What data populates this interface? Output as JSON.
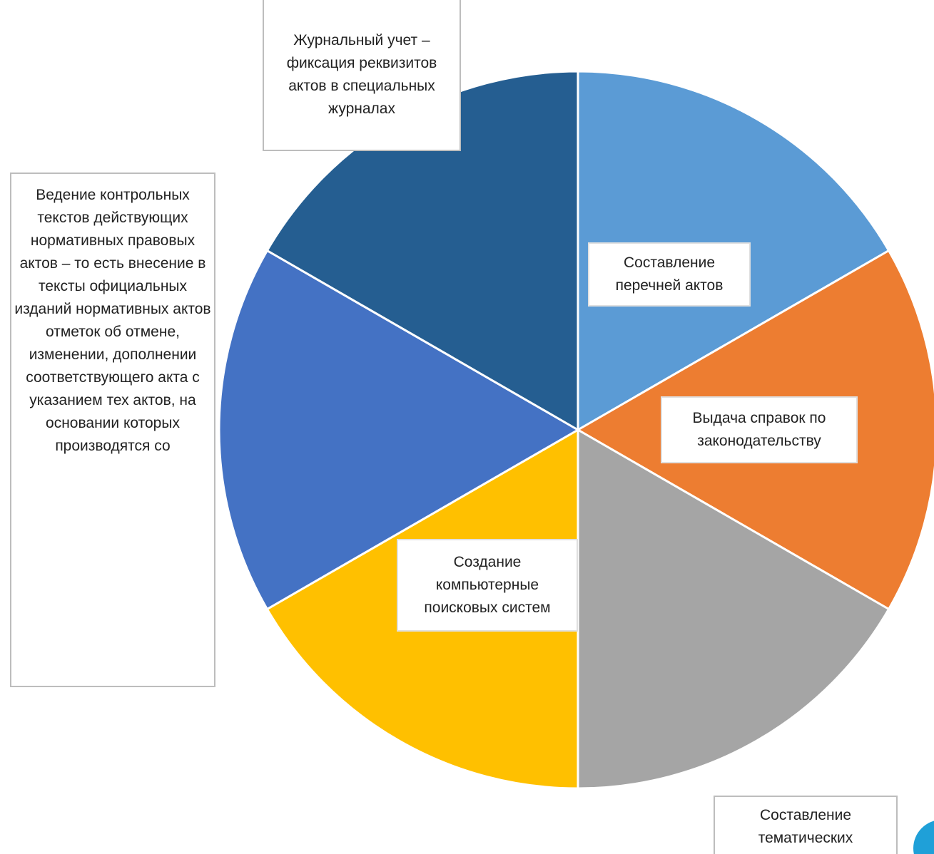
{
  "chart_data": {
    "type": "pie",
    "title": "",
    "slices": [
      {
        "label": "Составление перечней актов",
        "value": 1,
        "color": "#5b9bd5"
      },
      {
        "label": "Выдача справок по законодательству",
        "value": 1,
        "color": "#ed7d31"
      },
      {
        "label": "Составление тематических",
        "value": 1,
        "color": "#a5a5a5"
      },
      {
        "label": "Создание компьютерные поисковых систем",
        "value": 1,
        "color": "#ffc000"
      },
      {
        "label": "Ведение контрольных текстов действующих нормативных правовых актов – то есть внесение в тексты официальных изданий нормативных актов отметок об отмене, изменении, дополнении соответствующего акта с указанием тех актов, на основании которых производятся со",
        "value": 1,
        "color": "#4472c4"
      },
      {
        "label": "Журнальный учет – фиксация реквизитов актов в специальных журналах",
        "value": 1,
        "color": "#255e91"
      }
    ],
    "legend": "none",
    "slice_border_color": "#ffffff"
  },
  "labels": {
    "journal": "Журнальный учет – фиксация реквизитов актов в специальных журналах",
    "lists": "Составление перечней актов",
    "refs": "Выдача справок по законодательству",
    "search": "Создание компьютерные поисковых систем",
    "control": "Ведение контрольных текстов действующих нормативных правовых актов – то есть внесение в тексты официальных изданий нормативных актов отметок об отмене, изменении, дополнении соответствующего акта с указанием тех актов, на основании которых производятся со",
    "thematic": "Составление тематических"
  },
  "accent_color": "#1fa0d8"
}
